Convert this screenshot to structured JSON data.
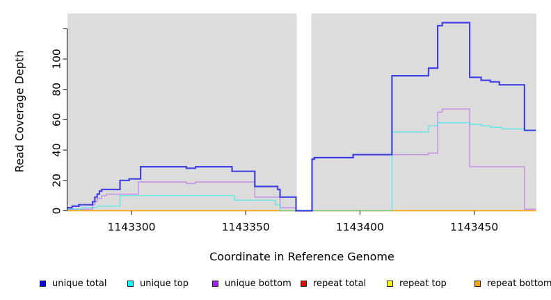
{
  "chart_data": {
    "type": "line",
    "subtype": "step-coverage-plot",
    "title": "",
    "xlabel": "Coordinate in Reference Genome",
    "ylabel": "Read Coverage Depth",
    "x_range": [
      1143272,
      1143477.2
    ],
    "y_range": [
      0,
      130
    ],
    "x_ticks": [
      1143300,
      1143350,
      1143400,
      1143450
    ],
    "x_tick_labels": [
      "1143300",
      "1143350",
      "1143400",
      "1143450"
    ],
    "y_ticks": [
      0,
      20,
      40,
      60,
      80,
      100,
      120
    ],
    "y_tick_labels": [
      "0",
      "20",
      "40",
      "60",
      "80",
      "100",
      ""
    ],
    "panel_bg": "#DCDCDC",
    "gap_x": [
      1143372,
      1143379
    ],
    "grid": false,
    "legend_position": "bottom",
    "legend": [
      {
        "label": "unique total",
        "color": "#0000EE"
      },
      {
        "label": "unique top",
        "color": "#00FFFF"
      },
      {
        "label": "unique bottom",
        "color": "#A020F0"
      },
      {
        "label": "repeat total",
        "color": "#EE0000"
      },
      {
        "label": "repeat top",
        "color": "#FFFF00"
      },
      {
        "label": "repeat bottom",
        "color": "#FFA500"
      }
    ],
    "series": [
      {
        "name": "repeat total",
        "line_color": "rgba(230,0,0,0.9)",
        "line_width": 1.2,
        "points": [
          [
            1143272,
            0
          ],
          [
            1143477,
            0
          ]
        ]
      },
      {
        "name": "repeat top",
        "line_color": "rgba(255,255,0,0.9)",
        "line_width": 1.2,
        "points": [
          [
            1143272,
            0
          ],
          [
            1143477,
            0
          ]
        ]
      },
      {
        "name": "repeat bottom",
        "line_color": "rgba(255,165,0,1)",
        "line_width": 1.6,
        "points": [
          [
            1143272,
            0
          ],
          [
            1143477,
            0
          ]
        ]
      },
      {
        "name": "unique bottom",
        "line_color": "rgba(160,32,240,0.42)",
        "line_width": 1.4,
        "points": [
          [
            1143272,
            1
          ],
          [
            1143283,
            4
          ],
          [
            1143284,
            6
          ],
          [
            1143285,
            8
          ],
          [
            1143287,
            10
          ],
          [
            1143289,
            11
          ],
          [
            1143303,
            19
          ],
          [
            1143324,
            18
          ],
          [
            1143328,
            19
          ],
          [
            1143354,
            9
          ],
          [
            1143365,
            2
          ],
          [
            1143372,
            0
          ],
          [
            1143379,
            34
          ],
          [
            1143380,
            35
          ],
          [
            1143397,
            37
          ],
          [
            1143430,
            38
          ],
          [
            1143434,
            65
          ],
          [
            1143436,
            67
          ],
          [
            1143448,
            29
          ],
          [
            1143472,
            1
          ],
          [
            1143477,
            1
          ]
        ]
      },
      {
        "name": "unique top",
        "line_color": "rgba(0,240,240,0.55)",
        "line_width": 1.4,
        "points": [
          [
            1143272,
            1
          ],
          [
            1143278,
            2
          ],
          [
            1143285,
            3
          ],
          [
            1143295,
            10
          ],
          [
            1143345,
            7
          ],
          [
            1143363,
            4
          ],
          [
            1143365,
            0
          ],
          [
            1143414,
            52
          ],
          [
            1143430,
            56
          ],
          [
            1143434,
            58
          ],
          [
            1143448,
            57
          ],
          [
            1143453,
            56
          ],
          [
            1143457,
            55
          ],
          [
            1143462,
            54
          ],
          [
            1143472,
            53
          ],
          [
            1143477,
            53
          ]
        ]
      },
      {
        "name": "unique total",
        "line_color": "rgba(40,40,230,0.85)",
        "line_width": 2.2,
        "points": [
          [
            1143272,
            2
          ],
          [
            1143274,
            3
          ],
          [
            1143277,
            4
          ],
          [
            1143283,
            6
          ],
          [
            1143284,
            9
          ],
          [
            1143285,
            11
          ],
          [
            1143286,
            13
          ],
          [
            1143287,
            14
          ],
          [
            1143295,
            20
          ],
          [
            1143299,
            21
          ],
          [
            1143304,
            29
          ],
          [
            1143324,
            28
          ],
          [
            1143328,
            29
          ],
          [
            1143344,
            26
          ],
          [
            1143354,
            16
          ],
          [
            1143364,
            14
          ],
          [
            1143365,
            9
          ],
          [
            1143372,
            0
          ],
          [
            1143379,
            34
          ],
          [
            1143380,
            35
          ],
          [
            1143397,
            37
          ],
          [
            1143414,
            89
          ],
          [
            1143430,
            94
          ],
          [
            1143434,
            122
          ],
          [
            1143436,
            124
          ],
          [
            1143448,
            88
          ],
          [
            1143453,
            86
          ],
          [
            1143457,
            85
          ],
          [
            1143461,
            83
          ],
          [
            1143472,
            53
          ],
          [
            1143477,
            53
          ]
        ]
      }
    ]
  }
}
